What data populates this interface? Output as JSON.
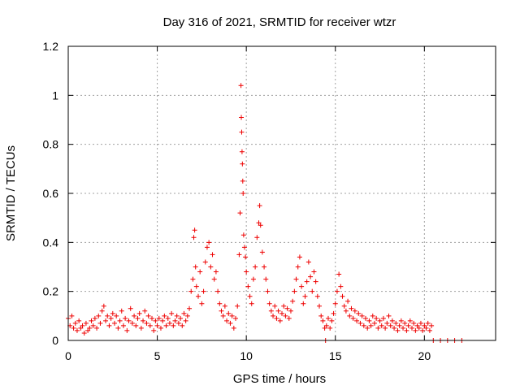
{
  "chart_data": {
    "type": "scatter",
    "title": "Day 316 of 2021, SRMTID for receiver wtzr",
    "xlabel": "GPS time / hours",
    "ylabel": "SRMTID / TECUs",
    "xlim": [
      0,
      24
    ],
    "ylim": [
      0,
      1.2
    ],
    "xticks": [
      0,
      5,
      10,
      15,
      20
    ],
    "yticks": [
      0,
      0.2,
      0.4,
      0.6,
      0.8,
      1,
      1.2
    ],
    "xtick_labels": [
      "0",
      "5",
      "10",
      "15",
      "20"
    ],
    "ytick_labels": [
      "0",
      "0.2",
      "0.4",
      "0.6",
      "0.8",
      "1",
      "1.2"
    ],
    "grid": true,
    "marker": "+",
    "marker_color": "#ee0000",
    "series": [
      {
        "name": "SRMTID",
        "points": [
          [
            0.0,
            0.09
          ],
          [
            0.1,
            0.06
          ],
          [
            0.2,
            0.1
          ],
          [
            0.3,
            0.05
          ],
          [
            0.4,
            0.07
          ],
          [
            0.5,
            0.04
          ],
          [
            0.6,
            0.08
          ],
          [
            0.7,
            0.05
          ],
          [
            0.8,
            0.06
          ],
          [
            0.9,
            0.03
          ],
          [
            1.0,
            0.07
          ],
          [
            1.1,
            0.04
          ],
          [
            1.2,
            0.05
          ],
          [
            1.3,
            0.08
          ],
          [
            1.4,
            0.06
          ],
          [
            1.5,
            0.09
          ],
          [
            1.6,
            0.05
          ],
          [
            1.7,
            0.1
          ],
          [
            1.8,
            0.07
          ],
          [
            1.9,
            0.12
          ],
          [
            2.0,
            0.14
          ],
          [
            2.1,
            0.08
          ],
          [
            2.2,
            0.1
          ],
          [
            2.3,
            0.06
          ],
          [
            2.4,
            0.09
          ],
          [
            2.5,
            0.11
          ],
          [
            2.6,
            0.07
          ],
          [
            2.7,
            0.1
          ],
          [
            2.8,
            0.05
          ],
          [
            2.9,
            0.08
          ],
          [
            3.0,
            0.12
          ],
          [
            3.1,
            0.06
          ],
          [
            3.2,
            0.09
          ],
          [
            3.3,
            0.04
          ],
          [
            3.4,
            0.08
          ],
          [
            3.5,
            0.13
          ],
          [
            3.6,
            0.07
          ],
          [
            3.7,
            0.1
          ],
          [
            3.8,
            0.06
          ],
          [
            3.9,
            0.09
          ],
          [
            4.0,
            0.11
          ],
          [
            4.1,
            0.05
          ],
          [
            4.2,
            0.08
          ],
          [
            4.3,
            0.12
          ],
          [
            4.4,
            0.07
          ],
          [
            4.5,
            0.1
          ],
          [
            4.6,
            0.06
          ],
          [
            4.7,
            0.09
          ],
          [
            4.8,
            0.04
          ],
          [
            4.9,
            0.08
          ],
          [
            5.0,
            0.06
          ],
          [
            5.1,
            0.09
          ],
          [
            5.2,
            0.05
          ],
          [
            5.3,
            0.08
          ],
          [
            5.4,
            0.1
          ],
          [
            5.5,
            0.06
          ],
          [
            5.6,
            0.09
          ],
          [
            5.7,
            0.07
          ],
          [
            5.8,
            0.11
          ],
          [
            5.9,
            0.06
          ],
          [
            6.0,
            0.08
          ],
          [
            6.1,
            0.1
          ],
          [
            6.2,
            0.07
          ],
          [
            6.3,
            0.09
          ],
          [
            6.4,
            0.06
          ],
          [
            6.5,
            0.11
          ],
          [
            6.6,
            0.08
          ],
          [
            6.7,
            0.1
          ],
          [
            6.8,
            0.13
          ],
          [
            6.9,
            0.2
          ],
          [
            7.0,
            0.25
          ],
          [
            7.05,
            0.42
          ],
          [
            7.1,
            0.45
          ],
          [
            7.15,
            0.3
          ],
          [
            7.2,
            0.22
          ],
          [
            7.3,
            0.18
          ],
          [
            7.4,
            0.28
          ],
          [
            7.5,
            0.15
          ],
          [
            7.6,
            0.2
          ],
          [
            7.7,
            0.32
          ],
          [
            7.8,
            0.38
          ],
          [
            7.9,
            0.4
          ],
          [
            8.0,
            0.3
          ],
          [
            8.1,
            0.35
          ],
          [
            8.2,
            0.25
          ],
          [
            8.3,
            0.28
          ],
          [
            8.4,
            0.2
          ],
          [
            8.5,
            0.15
          ],
          [
            8.6,
            0.12
          ],
          [
            8.7,
            0.1
          ],
          [
            8.8,
            0.14
          ],
          [
            8.9,
            0.08
          ],
          [
            9.0,
            0.11
          ],
          [
            9.1,
            0.07
          ],
          [
            9.2,
            0.1
          ],
          [
            9.3,
            0.05
          ],
          [
            9.4,
            0.09
          ],
          [
            9.5,
            0.14
          ],
          [
            9.6,
            0.35
          ],
          [
            9.65,
            0.52
          ],
          [
            9.7,
            1.04
          ],
          [
            9.72,
            0.91
          ],
          [
            9.74,
            0.85
          ],
          [
            9.76,
            0.77
          ],
          [
            9.78,
            0.72
          ],
          [
            9.8,
            0.65
          ],
          [
            9.82,
            0.6
          ],
          [
            9.85,
            0.43
          ],
          [
            9.9,
            0.38
          ],
          [
            9.95,
            0.34
          ],
          [
            10.0,
            0.28
          ],
          [
            10.1,
            0.22
          ],
          [
            10.2,
            0.18
          ],
          [
            10.3,
            0.15
          ],
          [
            10.4,
            0.25
          ],
          [
            10.5,
            0.3
          ],
          [
            10.6,
            0.42
          ],
          [
            10.7,
            0.48
          ],
          [
            10.75,
            0.55
          ],
          [
            10.8,
            0.47
          ],
          [
            10.9,
            0.36
          ],
          [
            11.0,
            0.3
          ],
          [
            11.1,
            0.25
          ],
          [
            11.2,
            0.2
          ],
          [
            11.3,
            0.15
          ],
          [
            11.4,
            0.12
          ],
          [
            11.5,
            0.1
          ],
          [
            11.6,
            0.14
          ],
          [
            11.7,
            0.09
          ],
          [
            11.8,
            0.12
          ],
          [
            11.9,
            0.08
          ],
          [
            12.0,
            0.11
          ],
          [
            12.1,
            0.14
          ],
          [
            12.2,
            0.1
          ],
          [
            12.3,
            0.13
          ],
          [
            12.4,
            0.09
          ],
          [
            12.5,
            0.12
          ],
          [
            12.6,
            0.16
          ],
          [
            12.7,
            0.2
          ],
          [
            12.8,
            0.25
          ],
          [
            12.9,
            0.3
          ],
          [
            13.0,
            0.34
          ],
          [
            13.1,
            0.22
          ],
          [
            13.2,
            0.15
          ],
          [
            13.3,
            0.18
          ],
          [
            13.4,
            0.24
          ],
          [
            13.5,
            0.32
          ],
          [
            13.6,
            0.26
          ],
          [
            13.7,
            0.2
          ],
          [
            13.8,
            0.28
          ],
          [
            13.9,
            0.24
          ],
          [
            14.0,
            0.18
          ],
          [
            14.1,
            0.14
          ],
          [
            14.2,
            0.1
          ],
          [
            14.3,
            0.08
          ],
          [
            14.4,
            0.05
          ],
          [
            14.45,
            0.0
          ],
          [
            14.5,
            0.06
          ],
          [
            14.6,
            0.09
          ],
          [
            14.7,
            0.05
          ],
          [
            14.8,
            0.08
          ],
          [
            14.9,
            0.11
          ],
          [
            15.0,
            0.15
          ],
          [
            15.1,
            0.2
          ],
          [
            15.2,
            0.27
          ],
          [
            15.3,
            0.22
          ],
          [
            15.4,
            0.18
          ],
          [
            15.5,
            0.14
          ],
          [
            15.6,
            0.12
          ],
          [
            15.7,
            0.16
          ],
          [
            15.8,
            0.1
          ],
          [
            15.9,
            0.13
          ],
          [
            16.0,
            0.09
          ],
          [
            16.1,
            0.12
          ],
          [
            16.2,
            0.08
          ],
          [
            16.3,
            0.11
          ],
          [
            16.4,
            0.07
          ],
          [
            16.5,
            0.1
          ],
          [
            16.6,
            0.06
          ],
          [
            16.7,
            0.09
          ],
          [
            16.8,
            0.05
          ],
          [
            16.9,
            0.08
          ],
          [
            17.0,
            0.06
          ],
          [
            17.1,
            0.1
          ],
          [
            17.2,
            0.07
          ],
          [
            17.3,
            0.09
          ],
          [
            17.4,
            0.05
          ],
          [
            17.5,
            0.08
          ],
          [
            17.6,
            0.06
          ],
          [
            17.7,
            0.09
          ],
          [
            17.8,
            0.05
          ],
          [
            17.9,
            0.07
          ],
          [
            18.0,
            0.1
          ],
          [
            18.1,
            0.06
          ],
          [
            18.2,
            0.08
          ],
          [
            18.3,
            0.05
          ],
          [
            18.4,
            0.07
          ],
          [
            18.5,
            0.04
          ],
          [
            18.6,
            0.06
          ],
          [
            18.7,
            0.08
          ],
          [
            18.8,
            0.05
          ],
          [
            18.9,
            0.07
          ],
          [
            19.0,
            0.04
          ],
          [
            19.1,
            0.06
          ],
          [
            19.2,
            0.08
          ],
          [
            19.3,
            0.05
          ],
          [
            19.4,
            0.07
          ],
          [
            19.5,
            0.04
          ],
          [
            19.6,
            0.06
          ],
          [
            19.7,
            0.05
          ],
          [
            19.8,
            0.07
          ],
          [
            19.9,
            0.04
          ],
          [
            20.0,
            0.06
          ],
          [
            20.1,
            0.05
          ],
          [
            20.2,
            0.07
          ],
          [
            20.3,
            0.04
          ],
          [
            20.4,
            0.06
          ],
          [
            20.5,
            0.0
          ],
          [
            20.9,
            0.0
          ],
          [
            21.3,
            0.0
          ],
          [
            21.7,
            0.0
          ],
          [
            22.1,
            0.0
          ]
        ]
      }
    ]
  }
}
